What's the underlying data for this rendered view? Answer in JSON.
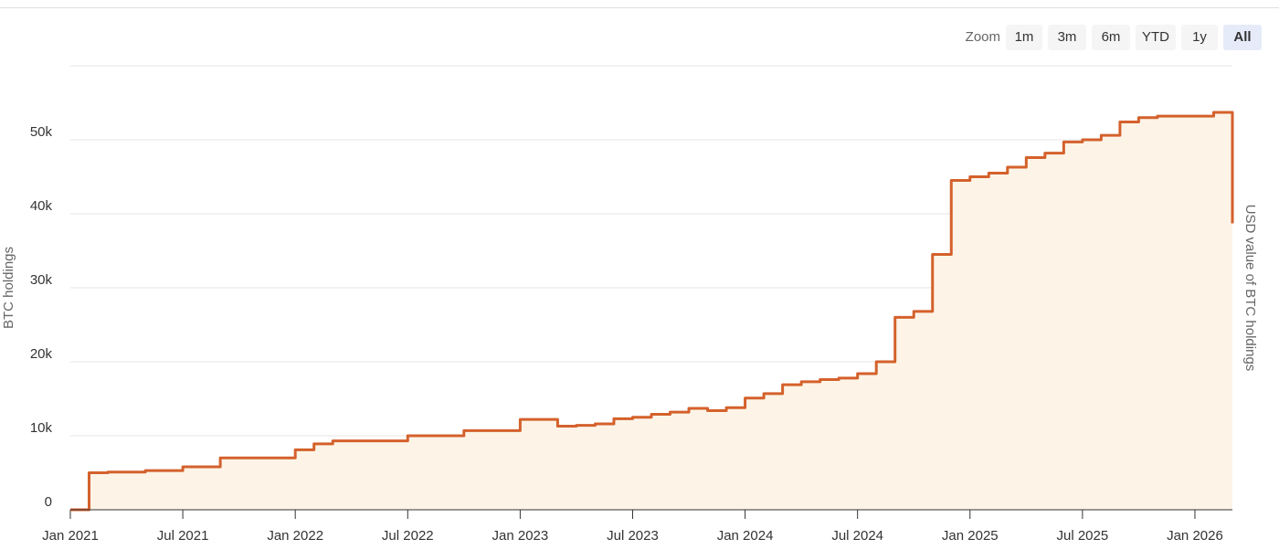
{
  "zoom_controls": {
    "label": "Zoom",
    "buttons": [
      "1m",
      "3m",
      "6m",
      "YTD",
      "1y",
      "All"
    ],
    "active": 5
  },
  "chart_data": {
    "type": "line",
    "step": true,
    "area": true,
    "ylabel": "BTC holdings",
    "y2label": "USD value of BTC holdings",
    "x": [
      "2021-01",
      "2021-02",
      "2021-03",
      "2021-05",
      "2021-07",
      "2021-09",
      "2022-01",
      "2022-02",
      "2022-03",
      "2022-07",
      "2022-10",
      "2023-01",
      "2023-03",
      "2023-04",
      "2023-05",
      "2023-06",
      "2023-07",
      "2023-08",
      "2023-09",
      "2023-10",
      "2023-11",
      "2023-12",
      "2024-01",
      "2024-02",
      "2024-03",
      "2024-04",
      "2024-05",
      "2024-06",
      "2024-07",
      "2024-08",
      "2024-09",
      "2024-10",
      "2024-11",
      "2024-12",
      "2025-01",
      "2025-02",
      "2025-03",
      "2025-04",
      "2025-05",
      "2025-06",
      "2025-07",
      "2025-08",
      "2025-09",
      "2025-10",
      "2025-11",
      "2026-02",
      "2026-03"
    ],
    "series": [
      {
        "name": "BTC holdings",
        "color": "#d4612c",
        "fill": "#fdf4e7",
        "values": [
          0,
          5000,
          5100,
          5300,
          5800,
          7000,
          8100,
          8900,
          9300,
          10000,
          10700,
          12200,
          11300,
          11400,
          11600,
          12300,
          12500,
          12900,
          13200,
          13700,
          13400,
          13800,
          15100,
          15700,
          16900,
          17300,
          17600,
          17800,
          18400,
          20000,
          26000,
          26800,
          34500,
          44500,
          45000,
          45500,
          46300,
          47600,
          48200,
          49700,
          50000,
          50600,
          52400,
          53000,
          53200,
          53700,
          38700
        ]
      }
    ],
    "xlim": [
      "2021-01",
      "2026-03"
    ],
    "xticks": [
      {
        "value": "2021-01",
        "label": "Jan 2021"
      },
      {
        "value": "2021-07",
        "label": "Jul 2021"
      },
      {
        "value": "2022-01",
        "label": "Jan 2022"
      },
      {
        "value": "2022-07",
        "label": "Jul 2022"
      },
      {
        "value": "2023-01",
        "label": "Jan 2023"
      },
      {
        "value": "2023-07",
        "label": "Jul 2023"
      },
      {
        "value": "2024-01",
        "label": "Jan 2024"
      },
      {
        "value": "2024-07",
        "label": "Jul 2024"
      },
      {
        "value": "2025-01",
        "label": "Jan 2025"
      },
      {
        "value": "2025-07",
        "label": "Jul 2025"
      },
      {
        "value": "2026-01",
        "label": "Jan 2026"
      }
    ],
    "ylim": [
      0,
      60000
    ],
    "yticks": [
      0,
      {
        "value": 10000,
        "label": "10k"
      },
      {
        "value": 20000,
        "label": "20k"
      },
      {
        "value": 30000,
        "label": "30k"
      },
      {
        "value": 40000,
        "label": "40k"
      },
      {
        "value": 50000,
        "label": "50k"
      }
    ],
    "grid": true
  }
}
